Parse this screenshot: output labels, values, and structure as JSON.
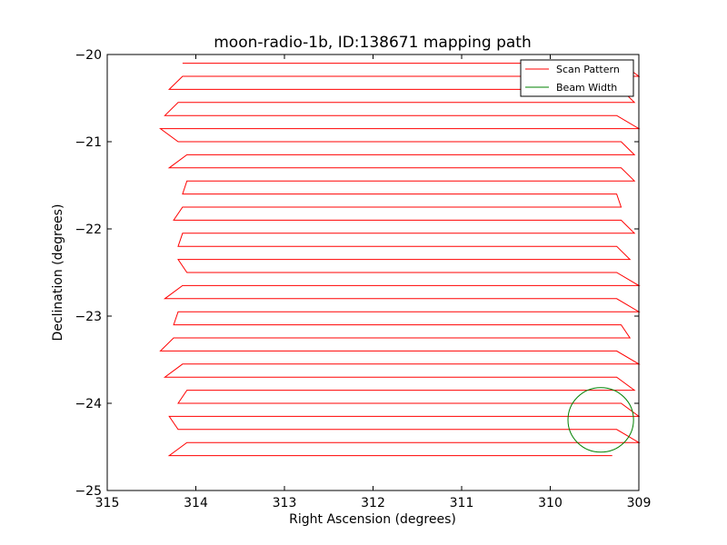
{
  "chart_data": {
    "type": "line",
    "title": "moon-radio-1b, ID:138671 mapping path",
    "xlabel": "Right Ascension (degrees)",
    "ylabel": "Declination (degrees)",
    "xlim": [
      315,
      309
    ],
    "ylim": [
      -25,
      -20
    ],
    "x_inverted": true,
    "xticks": [
      315,
      314,
      313,
      312,
      311,
      310,
      309
    ],
    "xtick_labels": [
      "315",
      "314",
      "313",
      "312",
      "311",
      "310",
      "309"
    ],
    "yticks": [
      -20,
      -21,
      -22,
      -23,
      -24,
      -25
    ],
    "ytick_labels": [
      "−20",
      "−21",
      "−22",
      "−23",
      "−24",
      "−25"
    ],
    "grid": false,
    "legend": {
      "placement": "top-right"
    },
    "series": [
      {
        "name": "Scan Pattern",
        "color": "#ff0000",
        "kind": "raster-scan",
        "rows_dec": [
          -20.1,
          -20.25,
          -20.4,
          -20.55,
          -20.7,
          -20.85,
          -21.0,
          -21.15,
          -21.3,
          -21.45,
          -21.6,
          -21.75,
          -21.9,
          -22.05,
          -22.2,
          -22.35,
          -22.5,
          -22.65,
          -22.8,
          -22.95,
          -23.1,
          -23.25,
          -23.4,
          -23.55,
          -23.7,
          -23.85,
          -24.0,
          -24.15,
          -24.3,
          -24.45,
          -24.6
        ],
        "ra_start": 314.15,
        "ra_end": 309.2,
        "x": [
          314.15,
          309.2,
          309.0,
          314.15,
          314.3,
          309.2,
          309.05,
          314.2,
          314.35,
          309.25,
          309.0,
          314.4,
          314.2,
          309.2,
          309.05,
          314.1,
          314.3,
          309.2,
          309.05,
          314.1,
          314.15,
          309.25,
          309.2,
          314.15,
          314.25,
          309.2,
          309.05,
          314.15,
          314.2,
          309.25,
          309.1,
          314.2,
          314.1,
          309.25,
          309.0,
          314.15,
          314.35,
          309.25,
          309.0,
          314.2,
          314.25,
          309.2,
          309.1,
          314.25,
          314.4,
          309.25,
          309.0,
          314.15,
          314.35,
          309.25,
          309.05,
          314.1,
          314.2,
          309.2,
          309.0,
          314.3,
          314.2,
          309.25,
          309.0,
          314.1,
          314.3,
          309.3
        ],
        "y": [
          -20.1,
          -20.1,
          -20.25,
          -20.25,
          -20.4,
          -20.4,
          -20.55,
          -20.55,
          -20.7,
          -20.7,
          -20.85,
          -20.85,
          -21.0,
          -21.0,
          -21.15,
          -21.15,
          -21.3,
          -21.3,
          -21.45,
          -21.45,
          -21.6,
          -21.6,
          -21.75,
          -21.75,
          -21.9,
          -21.9,
          -22.05,
          -22.05,
          -22.2,
          -22.2,
          -22.35,
          -22.35,
          -22.5,
          -22.5,
          -22.65,
          -22.65,
          -22.8,
          -22.8,
          -22.95,
          -22.95,
          -23.1,
          -23.1,
          -23.25,
          -23.25,
          -23.4,
          -23.4,
          -23.55,
          -23.55,
          -23.7,
          -23.7,
          -23.85,
          -23.85,
          -24.0,
          -24.0,
          -24.15,
          -24.15,
          -24.3,
          -24.3,
          -24.45,
          -24.45,
          -24.6,
          -24.6
        ]
      },
      {
        "name": "Beam Width",
        "color": "#008000",
        "kind": "circle",
        "center": [
          309.43,
          -24.19
        ],
        "radius_ra": 0.37,
        "radius_dec": 0.37
      }
    ]
  }
}
